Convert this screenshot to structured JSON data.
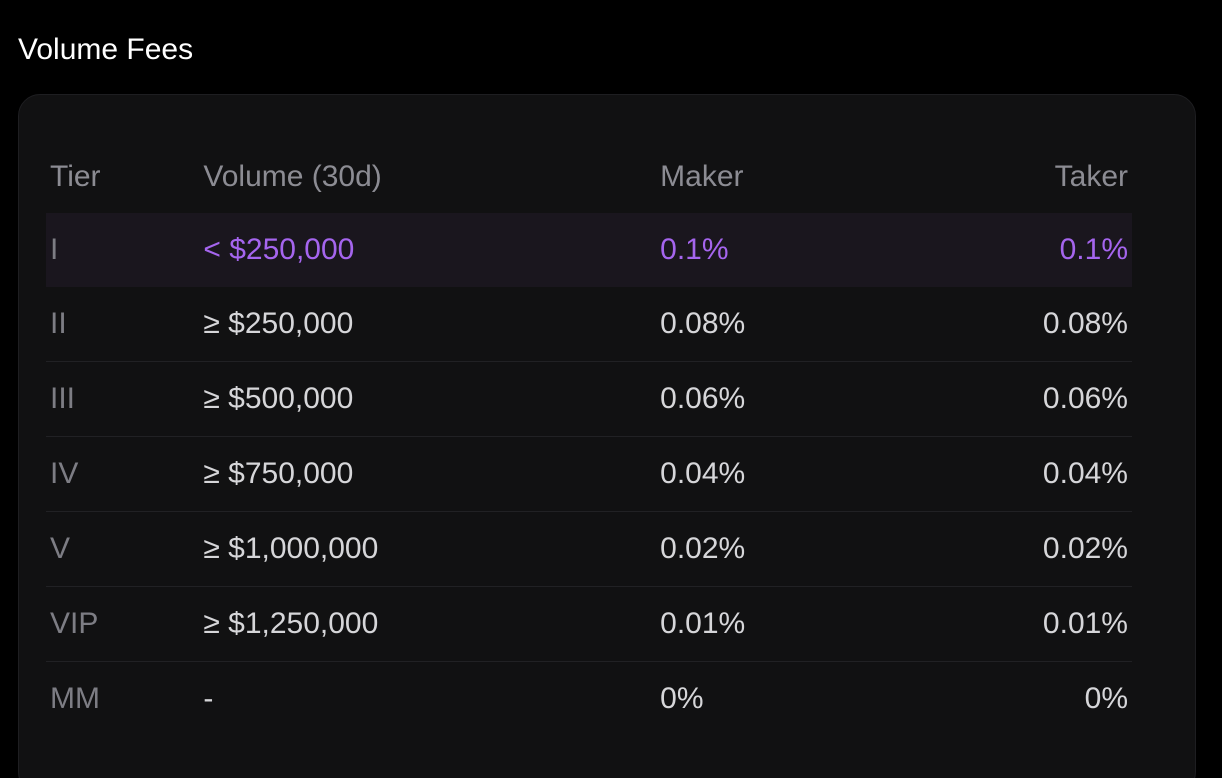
{
  "section": {
    "title": "Volume Fees"
  },
  "table": {
    "headers": {
      "tier": "Tier",
      "volume": "Volume (30d)",
      "maker": "Maker",
      "taker": "Taker"
    },
    "rows": [
      {
        "tier": "I",
        "volume": "< $250,000",
        "maker": "0.1%",
        "taker": "0.1%",
        "current": true
      },
      {
        "tier": "II",
        "volume": "≥ $250,000",
        "maker": "0.08%",
        "taker": "0.08%",
        "current": false
      },
      {
        "tier": "III",
        "volume": "≥ $500,000",
        "maker": "0.06%",
        "taker": "0.06%",
        "current": false
      },
      {
        "tier": "IV",
        "volume": "≥ $750,000",
        "maker": "0.04%",
        "taker": "0.04%",
        "current": false
      },
      {
        "tier": "V",
        "volume": "≥ $1,000,000",
        "maker": "0.02%",
        "taker": "0.02%",
        "current": false
      },
      {
        "tier": "VIP",
        "volume": "≥ $1,250,000",
        "maker": "0.01%",
        "taker": "0.01%",
        "current": false
      },
      {
        "tier": "MM",
        "volume": "-",
        "maker": "0%",
        "taker": "0%",
        "current": false
      }
    ]
  },
  "colors": {
    "background": "#000000",
    "card": "#111112",
    "accent": "#a565ee",
    "current_row_bg": "#1a161e",
    "header_text": "#8c8c93",
    "body_text": "#d6d6d9"
  }
}
